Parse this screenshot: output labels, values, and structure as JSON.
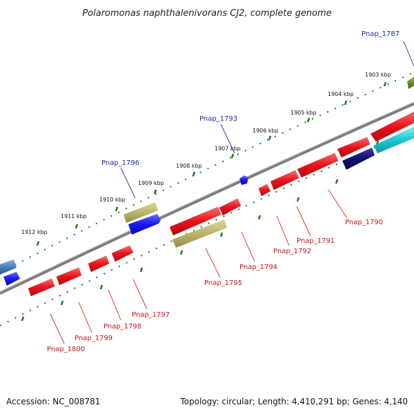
{
  "title": "Polaromonas naphthalenivorans CJ2, complete genome",
  "footer": {
    "accession": "Accession: NC_008781",
    "topology": "Topology: circular; Length: 4,410,291 bp; Genes: 4,140"
  },
  "kbp_ticks": [
    "1903 kbp",
    "1904 kbp",
    "1905 kbp",
    "1906 kbp",
    "1907 kbp",
    "1908 kbp",
    "1909 kbp",
    "1910 kbp",
    "1911 kbp",
    "1912 kbp"
  ],
  "gene_labels": {
    "pnap_1787": "Pnap_1787",
    "pnap_1793": "Pnap_1793",
    "pnap_1796": "Pnap_1796",
    "pnap_1790": "Pnap_1790",
    "pnap_1791": "Pnap_1791",
    "pnap_1792": "Pnap_1792",
    "pnap_1794": "Pnap_1794",
    "pnap_1795": "Pnap_1795",
    "pnap_1797": "Pnap_1797",
    "pnap_1798": "Pnap_1798",
    "pnap_1799": "Pnap_1799",
    "pnap_1800": "Pnap_1800"
  },
  "colors": {
    "backbone": "#7a7a7a",
    "tick": "#1a7a1a",
    "red_gene": "#e8141a",
    "blue_gene": "#1a1af0",
    "khaki_gene": "#bcb56a",
    "cyan_gene": "#19c9d2",
    "navy_gene": "#101070",
    "olive_gene": "#6b8e23",
    "steel_gene": "#4a80b8",
    "blue_label": "#1f2a9e",
    "red_label": "#c4161c"
  }
}
